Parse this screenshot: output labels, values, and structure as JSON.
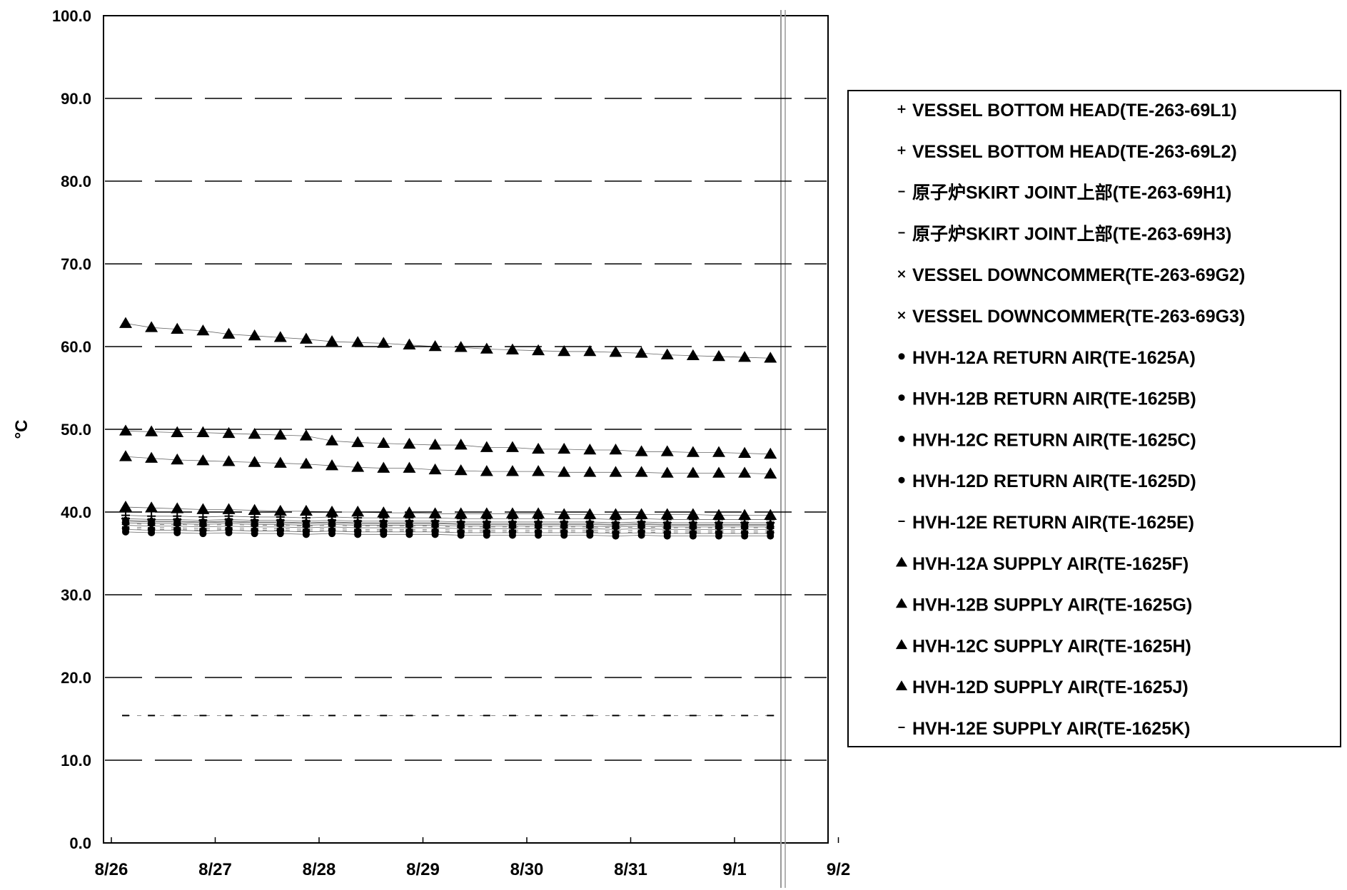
{
  "chart_data": {
    "type": "scatter",
    "title": "",
    "xlabel": "",
    "ylabel": "°C",
    "ylim": [
      0,
      100
    ],
    "yticks": [
      "0.0",
      "10.0",
      "20.0",
      "30.0",
      "40.0",
      "50.0",
      "60.0",
      "70.0",
      "80.0",
      "90.0",
      "100.0"
    ],
    "xticks": [
      "8/26",
      "8/27",
      "8/28",
      "8/29",
      "8/30",
      "8/31",
      "9/1",
      "9/2"
    ],
    "grid": "horizontal dashed",
    "legend_position": "right",
    "series": [
      {
        "name": "VESSEL BOTTOM HEAD(TE-263-69L1)",
        "marker": "+",
        "values": [
          39.6,
          39.5,
          39.5,
          39.4,
          39.5,
          39.4,
          39.4,
          39.3,
          39.4,
          39.3,
          39.3,
          39.3,
          39.3,
          39.2,
          39.2,
          39.2,
          39.2,
          39.2,
          39.2,
          39.1,
          39.2,
          39.1,
          39.1,
          39.1,
          39.1,
          39.1
        ]
      },
      {
        "name": "VESSEL BOTTOM HEAD(TE-263-69L2)",
        "marker": "+",
        "values": [
          39.2,
          39.1,
          39.1,
          39.0,
          39.1,
          39.0,
          39.0,
          38.9,
          39.0,
          38.9,
          38.9,
          38.9,
          38.9,
          38.8,
          38.8,
          38.8,
          38.8,
          38.8,
          38.8,
          38.7,
          38.8,
          38.7,
          38.7,
          38.7,
          38.7,
          38.7
        ]
      },
      {
        "name": "原子炉SKIRT JOINT上部(TE-263-69H1)",
        "marker": "-",
        "values": [
          38.6,
          38.5,
          38.5,
          38.4,
          38.5,
          38.4,
          38.4,
          38.3,
          38.4,
          38.3,
          38.3,
          38.3,
          38.3,
          38.2,
          38.2,
          38.2,
          38.2,
          38.2,
          38.2,
          38.1,
          38.2,
          38.1,
          38.1,
          38.1,
          38.1,
          38.1
        ]
      },
      {
        "name": "原子炉SKIRT JOINT上部(TE-263-69H3)",
        "marker": "-",
        "values": [
          38.2,
          38.1,
          38.1,
          38.0,
          38.1,
          38.0,
          38.0,
          37.9,
          38.0,
          37.9,
          37.9,
          37.9,
          37.9,
          37.8,
          37.8,
          37.8,
          37.8,
          37.8,
          37.8,
          37.7,
          37.8,
          37.7,
          37.7,
          37.7,
          37.7,
          37.7
        ]
      },
      {
        "name": "VESSEL DOWNCOMMER(TE-263-69G2)",
        "marker": "x",
        "values": [
          38.9,
          38.8,
          38.8,
          38.7,
          38.8,
          38.7,
          38.7,
          38.6,
          38.7,
          38.6,
          38.6,
          38.6,
          38.6,
          38.5,
          38.5,
          38.5,
          38.5,
          38.5,
          38.5,
          38.4,
          38.5,
          38.4,
          38.4,
          38.4,
          38.4,
          38.4
        ]
      },
      {
        "name": "VESSEL DOWNCOMMER(TE-263-69G3)",
        "marker": "x",
        "values": [
          38.4,
          38.3,
          38.3,
          38.2,
          38.3,
          38.2,
          38.2,
          38.1,
          38.2,
          38.1,
          38.1,
          38.1,
          38.1,
          38.0,
          38.0,
          38.0,
          38.0,
          38.0,
          38.0,
          37.9,
          38.0,
          37.9,
          37.9,
          37.9,
          37.9,
          37.9
        ]
      },
      {
        "name": "HVH-12A RETURN AIR(TE-1625A)",
        "marker": "dot",
        "values": [
          39.0,
          38.9,
          38.9,
          38.8,
          38.9,
          38.8,
          38.8,
          38.7,
          38.8,
          38.7,
          38.7,
          38.7,
          38.7,
          38.6,
          38.6,
          38.6,
          38.6,
          38.6,
          38.6,
          38.5,
          38.6,
          38.5,
          38.5,
          38.5,
          38.5,
          38.5
        ]
      },
      {
        "name": "HVH-12B RETURN AIR(TE-1625B)",
        "marker": "dot",
        "values": [
          38.7,
          38.6,
          38.6,
          38.5,
          38.6,
          38.5,
          38.5,
          38.4,
          38.5,
          38.4,
          38.4,
          38.4,
          38.4,
          38.3,
          38.3,
          38.3,
          38.3,
          38.3,
          38.3,
          38.2,
          38.3,
          38.2,
          38.2,
          38.2,
          38.2,
          38.2
        ]
      },
      {
        "name": "HVH-12C RETURN AIR(TE-1625C)",
        "marker": "dot",
        "values": [
          37.9,
          37.8,
          37.8,
          37.7,
          37.8,
          37.7,
          37.7,
          37.6,
          37.7,
          37.6,
          37.6,
          37.6,
          37.6,
          37.5,
          37.5,
          37.5,
          37.5,
          37.5,
          37.5,
          37.4,
          37.5,
          37.4,
          37.4,
          37.4,
          37.4,
          37.4
        ]
      },
      {
        "name": "HVH-12D RETURN AIR(TE-1625D)",
        "marker": "dot",
        "values": [
          37.6,
          37.5,
          37.5,
          37.4,
          37.5,
          37.4,
          37.4,
          37.3,
          37.4,
          37.3,
          37.3,
          37.3,
          37.3,
          37.2,
          37.2,
          37.2,
          37.2,
          37.2,
          37.2,
          37.1,
          37.2,
          37.1,
          37.1,
          37.1,
          37.1,
          37.1
        ]
      },
      {
        "name": "HVH-12E RETURN AIR(TE-1625E)",
        "marker": "-",
        "values": [
          38.0,
          37.9,
          37.9,
          37.8,
          37.9,
          37.8,
          37.8,
          37.7,
          37.8,
          37.7,
          37.7,
          37.7,
          37.7,
          37.6,
          37.6,
          37.6,
          37.6,
          37.6,
          37.6,
          37.5,
          37.6,
          37.5,
          37.5,
          37.5,
          37.5,
          37.5
        ]
      },
      {
        "name": "HVH-12A SUPPLY AIR(TE-1625F)",
        "marker": "triangle",
        "values": [
          62.8,
          62.3,
          62.1,
          61.9,
          61.5,
          61.3,
          61.1,
          60.9,
          60.6,
          60.5,
          60.4,
          60.2,
          60.0,
          59.9,
          59.7,
          59.6,
          59.5,
          59.4,
          59.4,
          59.3,
          59.2,
          59.0,
          58.9,
          58.8,
          58.7,
          58.6
        ]
      },
      {
        "name": "HVH-12B SUPPLY AIR(TE-1625G)",
        "marker": "triangle",
        "values": [
          49.8,
          49.7,
          49.6,
          49.6,
          49.5,
          49.4,
          49.3,
          49.2,
          48.6,
          48.4,
          48.3,
          48.2,
          48.1,
          48.1,
          47.8,
          47.8,
          47.6,
          47.6,
          47.5,
          47.5,
          47.3,
          47.3,
          47.2,
          47.2,
          47.1,
          47.0
        ]
      },
      {
        "name": "HVH-12C SUPPLY AIR(TE-1625H)",
        "marker": "triangle",
        "values": [
          46.7,
          46.5,
          46.3,
          46.2,
          46.1,
          46.0,
          45.9,
          45.8,
          45.6,
          45.4,
          45.3,
          45.3,
          45.1,
          45.0,
          44.9,
          44.9,
          44.9,
          44.8,
          44.8,
          44.8,
          44.8,
          44.7,
          44.7,
          44.7,
          44.7,
          44.6
        ]
      },
      {
        "name": "HVH-12D SUPPLY AIR(TE-1625J)",
        "marker": "triangle",
        "values": [
          40.6,
          40.5,
          40.4,
          40.3,
          40.3,
          40.2,
          40.1,
          40.1,
          40.0,
          40.0,
          39.9,
          39.9,
          39.8,
          39.8,
          39.8,
          39.8,
          39.8,
          39.7,
          39.7,
          39.7,
          39.7,
          39.7,
          39.7,
          39.6,
          39.6,
          39.6
        ]
      },
      {
        "name": "HVH-12E SUPPLY AIR(TE-1625K)",
        "marker": "-",
        "values": [
          15.4,
          15.4,
          15.4,
          15.4,
          15.4,
          15.4,
          15.4,
          15.4,
          15.4,
          15.4,
          15.4,
          15.4,
          15.4,
          15.4,
          15.4,
          15.4,
          15.4,
          15.4,
          15.4,
          15.4,
          15.4,
          15.4,
          15.4,
          15.4,
          15.4,
          15.4
        ]
      }
    ]
  }
}
